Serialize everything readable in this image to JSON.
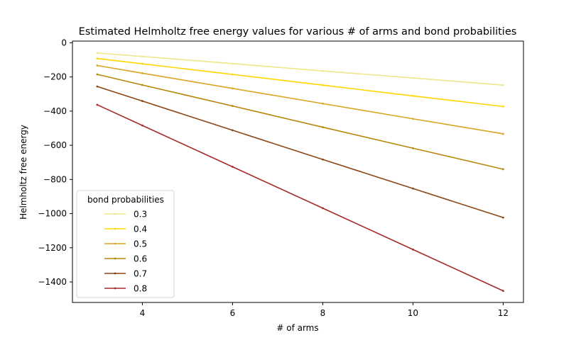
{
  "chart_data": {
    "type": "line",
    "title": "Estimated Helmholtz free energy values for various # of arms and bond probabilities",
    "xlabel": "# of arms",
    "ylabel": "Helmholtz free energy",
    "x": [
      3,
      4,
      6,
      8,
      10,
      12
    ],
    "xticks": [
      4,
      6,
      8,
      10,
      12
    ],
    "yticks": [
      0,
      -200,
      -400,
      -600,
      -800,
      -1000,
      -1200,
      -1400
    ],
    "xlim": [
      2.45,
      12.45
    ],
    "ylim": [
      -1520,
      10
    ],
    "grid": false,
    "legend": {
      "title": "bond probabilities",
      "placement": "lower-left"
    },
    "series": [
      {
        "name": "0.3",
        "color": "#F0E68C",
        "values": [
          -60,
          -80,
          -122,
          -165,
          -206,
          -248
        ]
      },
      {
        "name": "0.4",
        "color": "#FFD700",
        "values": [
          -92,
          -123,
          -185,
          -248,
          -311,
          -373
        ]
      },
      {
        "name": "0.5",
        "color": "#DAA520",
        "values": [
          -133,
          -178,
          -267,
          -356,
          -445,
          -533
        ]
      },
      {
        "name": "0.6",
        "color": "#B8860B",
        "values": [
          -185,
          -247,
          -370,
          -494,
          -617,
          -740
        ]
      },
      {
        "name": "0.7",
        "color": "#8B4513",
        "values": [
          -256,
          -341,
          -512,
          -683,
          -853,
          -1023
        ]
      },
      {
        "name": "0.8",
        "color": "#A52A2A",
        "values": [
          -363,
          -484,
          -726,
          -968,
          -1210,
          -1452
        ]
      }
    ]
  }
}
